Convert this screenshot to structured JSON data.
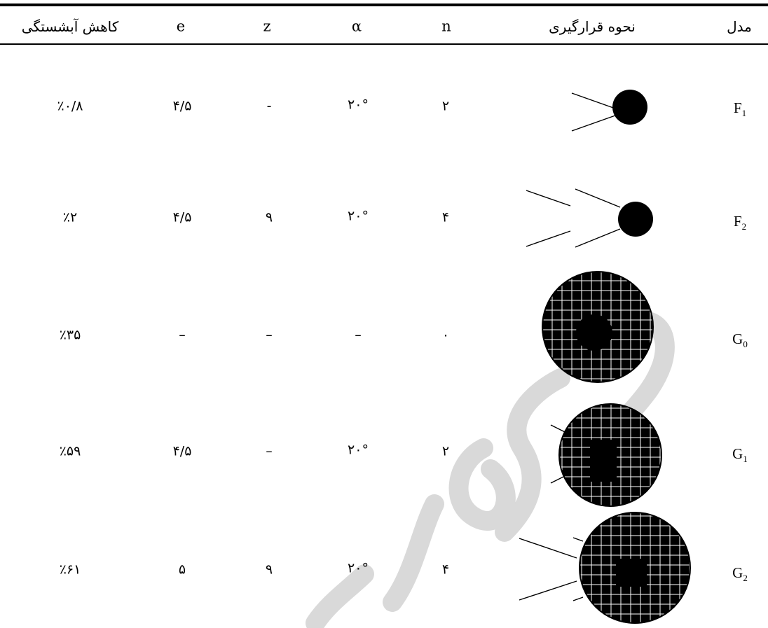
{
  "table": {
    "headers": {
      "reduction": "کاهش آبشستگی",
      "e": "e",
      "z": "z",
      "alpha": "α",
      "n": "n",
      "arrangement": "نحوه قرارگیری",
      "model": "مدل"
    },
    "rows": [
      {
        "reduction": "٪۰/۸",
        "e": "۴/۵",
        "z": "-",
        "alpha": "۲۰°",
        "n": "۲",
        "model": "F",
        "model_sub": "1"
      },
      {
        "reduction": "٪۲",
        "e": "۴/۵",
        "z": "۹",
        "alpha": "۲۰°",
        "n": "۴",
        "model": "F",
        "model_sub": "2"
      },
      {
        "reduction": "٪۳۵",
        "e": "–",
        "z": "–",
        "alpha": "–",
        "n": "۰",
        "model": "G",
        "model_sub": "0"
      },
      {
        "reduction": "٪۵۹",
        "e": "۴/۵",
        "z": "–",
        "alpha": "۲۰°",
        "n": "۲",
        "model": "G",
        "model_sub": "1"
      },
      {
        "reduction": "٪۶۱",
        "e": "۵",
        "z": "۹",
        "alpha": "۲۰°",
        "n": "۴",
        "model": "G",
        "model_sub": "2"
      }
    ]
  },
  "colors": {
    "ink": "#000000",
    "watermark": "#d9d9d9",
    "background": "#ffffff"
  }
}
